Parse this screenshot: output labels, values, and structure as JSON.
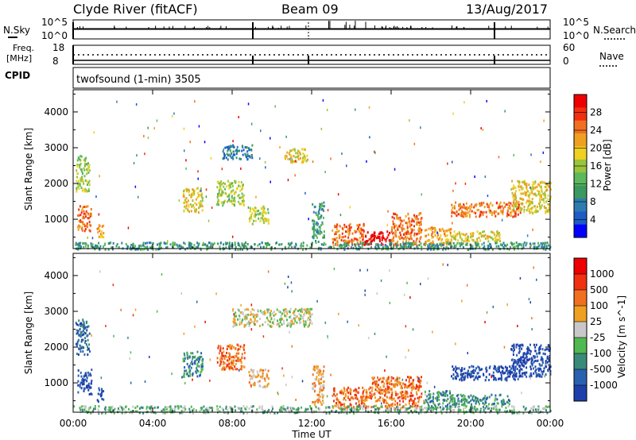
{
  "header": {
    "station": "Clyde River (fitACF)",
    "beam": "Beam 09",
    "date": "13/Aug/2017"
  },
  "summary_panels": {
    "nsky_label": "N.Sky",
    "nsky_ticks": [
      "10^5",
      "10^0"
    ],
    "nsearch_label": "N.Search",
    "nsearch_ticks": [
      "10^5",
      "10^0"
    ],
    "freq_label": "Freq.",
    "freq_unit": "[MHz]",
    "freq_ticks": [
      "18",
      "8"
    ],
    "nave_label": "Nave",
    "nave_ticks": [
      "60",
      "0"
    ],
    "cpid_label": "CPID",
    "cpid_value": "twofsound (1-min) 3505"
  },
  "chart_data": [
    {
      "type": "heatmap",
      "title": "",
      "xlabel": "Time UT",
      "ylabel": "Slant Range [km]",
      "x_ticks": [
        "00:00",
        "04:00",
        "08:00",
        "12:00",
        "16:00",
        "20:00",
        "00:00"
      ],
      "xlim": [
        0,
        24
      ],
      "y_ticks": [
        1000,
        2000,
        3000,
        4000
      ],
      "ylim": [
        180,
        4620
      ],
      "colorbar": {
        "label": "Power [dB]",
        "ticks": [
          "4",
          "8",
          "12",
          "16",
          "20",
          "24",
          "28"
        ],
        "colors": [
          "#0000ff",
          "#1d5cc4",
          "#2e7bb0",
          "#3a9860",
          "#5cb85c",
          "#9ac43c",
          "#f0d020",
          "#f0a020",
          "#f07020",
          "#f03010",
          "#ee0000"
        ]
      },
      "regions": [
        {
          "t": [
            0.1,
            0.8
          ],
          "r": [
            1800,
            2800
          ],
          "level": 5
        },
        {
          "t": [
            0.2,
            0.9
          ],
          "r": [
            700,
            1400
          ],
          "level": 8
        },
        {
          "t": [
            1.1,
            1.5
          ],
          "r": [
            500,
            900
          ],
          "level": 7
        },
        {
          "t": [
            5.5,
            6.5
          ],
          "r": [
            1200,
            1900
          ],
          "level": 6
        },
        {
          "t": [
            7.2,
            8.6
          ],
          "r": [
            1400,
            2100
          ],
          "level": 5
        },
        {
          "t": [
            8.8,
            9.8
          ],
          "r": [
            900,
            1400
          ],
          "level": 5
        },
        {
          "t": [
            7.5,
            9.0
          ],
          "r": [
            2700,
            3100
          ],
          "level": 2
        },
        {
          "t": [
            10.6,
            11.8
          ],
          "r": [
            2600,
            3000
          ],
          "level": 6
        },
        {
          "t": [
            12.0,
            12.6
          ],
          "r": [
            400,
            1500
          ],
          "level": 3
        },
        {
          "t": [
            13.0,
            14.6
          ],
          "r": [
            300,
            900
          ],
          "level": 8
        },
        {
          "t": [
            14.6,
            16.0
          ],
          "r": [
            300,
            700
          ],
          "level": 10
        },
        {
          "t": [
            16.0,
            17.5
          ],
          "r": [
            300,
            1200
          ],
          "level": 8
        },
        {
          "t": [
            17.6,
            19.0
          ],
          "r": [
            300,
            800
          ],
          "level": 7
        },
        {
          "t": [
            19.0,
            21.5
          ],
          "r": [
            400,
            700
          ],
          "level": 6
        },
        {
          "t": [
            19.0,
            22.5
          ],
          "r": [
            1100,
            1500
          ],
          "level": 8
        },
        {
          "t": [
            22.0,
            24.0
          ],
          "r": [
            1200,
            2100
          ],
          "level": 6
        },
        {
          "t": [
            0.0,
            24.0
          ],
          "r": [
            180,
            380
          ],
          "level": 3
        }
      ]
    },
    {
      "type": "heatmap",
      "title": "",
      "xlabel": "Time UT",
      "ylabel": "Slant Range [km]",
      "x_ticks": [
        "00:00",
        "04:00",
        "08:00",
        "12:00",
        "16:00",
        "20:00",
        "00:00"
      ],
      "xlim": [
        0,
        24
      ],
      "y_ticks": [
        1000,
        2000,
        3000,
        4000
      ],
      "ylim": [
        180,
        4620
      ],
      "colorbar": {
        "label": "Velocity [m s^-1]",
        "ticks": [
          "1000",
          "500",
          "100",
          "25",
          "-25",
          "-100",
          "-500",
          "-1000"
        ],
        "colors": [
          "#1e3faa",
          "#2a60b0",
          "#3a8a7a",
          "#50b850",
          "#c8c8c8",
          "#f0a020",
          "#f07020",
          "#f03010",
          "#ee0000"
        ]
      },
      "regions": [
        {
          "t": [
            0.1,
            0.8
          ],
          "r": [
            1800,
            2800
          ],
          "level": 1
        },
        {
          "t": [
            0.2,
            0.9
          ],
          "r": [
            700,
            1400
          ],
          "level": 0
        },
        {
          "t": [
            1.1,
            1.5
          ],
          "r": [
            500,
            900
          ],
          "level": 0
        },
        {
          "t": [
            5.5,
            6.5
          ],
          "r": [
            1200,
            1900
          ],
          "level": 2
        },
        {
          "t": [
            7.2,
            8.6
          ],
          "r": [
            1400,
            2100
          ],
          "level": 6
        },
        {
          "t": [
            8.8,
            9.8
          ],
          "r": [
            900,
            1400
          ],
          "level": 5
        },
        {
          "t": [
            8.0,
            12.0
          ],
          "r": [
            2600,
            3100
          ],
          "level": 4
        },
        {
          "t": [
            12.0,
            12.6
          ],
          "r": [
            400,
            1500
          ],
          "level": 5
        },
        {
          "t": [
            13.0,
            15.0
          ],
          "r": [
            300,
            900
          ],
          "level": 6
        },
        {
          "t": [
            15.0,
            17.5
          ],
          "r": [
            300,
            1200
          ],
          "level": 6
        },
        {
          "t": [
            17.6,
            19.0
          ],
          "r": [
            300,
            800
          ],
          "level": 2
        },
        {
          "t": [
            19.0,
            22.0
          ],
          "r": [
            400,
            700
          ],
          "level": 2
        },
        {
          "t": [
            19.0,
            22.5
          ],
          "r": [
            1100,
            1500
          ],
          "level": 0
        },
        {
          "t": [
            22.0,
            24.0
          ],
          "r": [
            1200,
            2100
          ],
          "level": 0
        },
        {
          "t": [
            0.0,
            24.0
          ],
          "r": [
            180,
            380
          ],
          "level": 3
        }
      ]
    }
  ]
}
